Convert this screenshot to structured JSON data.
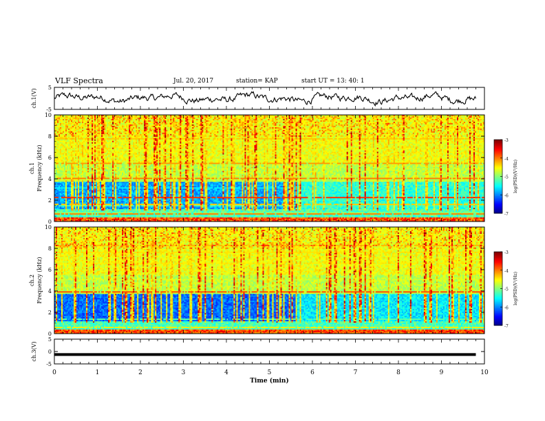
{
  "header": {
    "title": "VLF Spectra",
    "date": "Jul. 20, 2017",
    "station": "station= KAP",
    "start_ut": "start UT = 13: 40: 1"
  },
  "chart_data": [
    {
      "type": "line",
      "ylabel": "ch.1(V)",
      "ylim": [
        -5,
        5
      ],
      "yticks": [
        "5",
        "-5"
      ],
      "xlim": [
        0,
        10
      ],
      "series": [
        {
          "color": "#000000",
          "description": "noisy waveform amplitude around 0 V"
        }
      ]
    },
    {
      "type": "heatmap",
      "ylabel": "ch.1",
      "ylabel2": "Frequency (kHz)",
      "ylim": [
        0,
        10
      ],
      "yticks": [
        "0",
        "2",
        "4",
        "6",
        "8",
        "10"
      ],
      "xlim": [
        0,
        10
      ],
      "colorbar": {
        "label": "log(PSD)(V²/Hz)",
        "range": [
          -7,
          -3
        ],
        "ticks": [
          "-3",
          "-4",
          "-5",
          "-6",
          "-7"
        ]
      }
    },
    {
      "type": "heatmap",
      "ylabel": "ch.2",
      "ylabel2": "Frequency (kHz)",
      "ylim": [
        0,
        10
      ],
      "yticks": [
        "0",
        "2",
        "4",
        "6",
        "8",
        "10"
      ],
      "xlim": [
        0,
        10
      ],
      "colorbar": {
        "label": "log(PSD)(V²/Hz)",
        "range": [
          -7,
          -3
        ],
        "ticks": [
          "-3",
          "-4",
          "-5",
          "-6",
          "-7"
        ]
      }
    },
    {
      "type": "line",
      "ylabel": "ch.3(V)",
      "ylim": [
        -5,
        5
      ],
      "yticks": [
        "5",
        "0",
        "-5"
      ],
      "xlim": [
        0,
        10
      ],
      "series": [
        {
          "color": "#000000",
          "description": "flat line at about -1 V"
        }
      ],
      "xlabel": "Time (min)",
      "xticks": [
        "0",
        "1",
        "2",
        "3",
        "4",
        "5",
        "6",
        "7",
        "8",
        "9",
        "10"
      ]
    }
  ]
}
